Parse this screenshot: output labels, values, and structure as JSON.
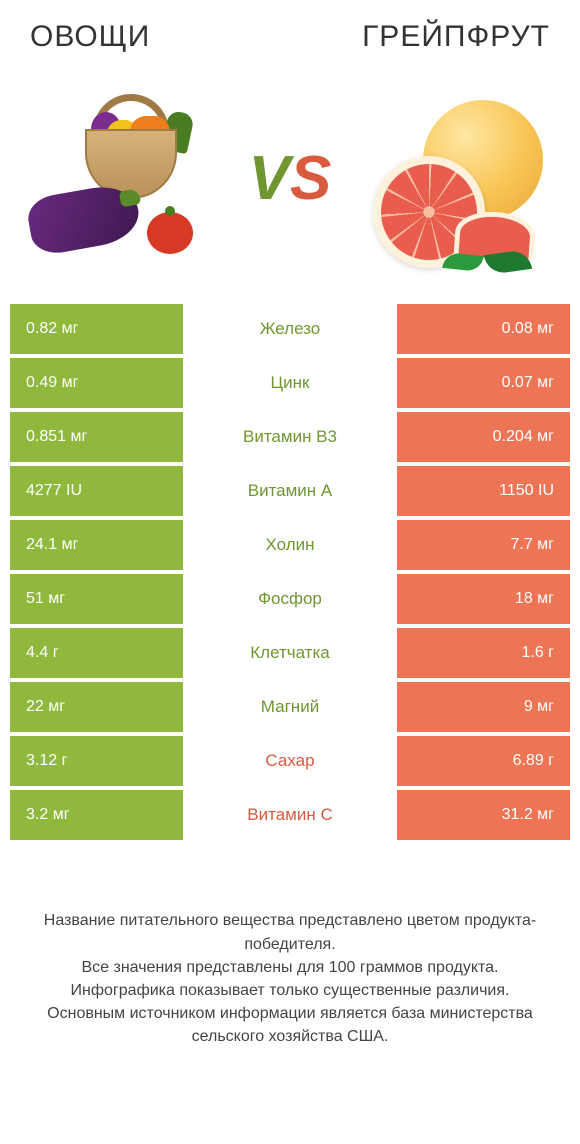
{
  "colors": {
    "left": "#8fb83c",
    "right": "#ed7556",
    "left_text_win": "#6f9630",
    "right_text_win": "#d85b3f",
    "cell_text": "#ffffff",
    "vs_v": "#6f9630",
    "vs_s": "#d85b3f"
  },
  "titles": {
    "left": "ОВОЩИ",
    "right": "ГРЕЙПФРУТ"
  },
  "vs": {
    "v": "V",
    "s": "S"
  },
  "rows": [
    {
      "name": "Железо",
      "left": "0.82 мг",
      "right": "0.08 мг",
      "winner": "left"
    },
    {
      "name": "Цинк",
      "left": "0.49 мг",
      "right": "0.07 мг",
      "winner": "left"
    },
    {
      "name": "Витамин B3",
      "left": "0.851 мг",
      "right": "0.204 мг",
      "winner": "left"
    },
    {
      "name": "Витамин A",
      "left": "4277 IU",
      "right": "1150 IU",
      "winner": "left"
    },
    {
      "name": "Холин",
      "left": "24.1 мг",
      "right": "7.7 мг",
      "winner": "left"
    },
    {
      "name": "Фосфор",
      "left": "51 мг",
      "right": "18 мг",
      "winner": "left"
    },
    {
      "name": "Клетчатка",
      "left": "4.4 г",
      "right": "1.6 г",
      "winner": "left"
    },
    {
      "name": "Магний",
      "left": "22 мг",
      "right": "9 мг",
      "winner": "left"
    },
    {
      "name": "Сахар",
      "left": "3.12 г",
      "right": "6.89 г",
      "winner": "right"
    },
    {
      "name": "Витамин C",
      "left": "3.2 мг",
      "right": "31.2 мг",
      "winner": "right"
    }
  ],
  "footer": [
    "Название питательного вещества представлено цветом продукта-победителя.",
    "Все значения представлены для 100 граммов продукта.",
    "Инфографика показывает только существенные различия.",
    "Основным источником информации является база министерства сельского хозяйства США."
  ]
}
